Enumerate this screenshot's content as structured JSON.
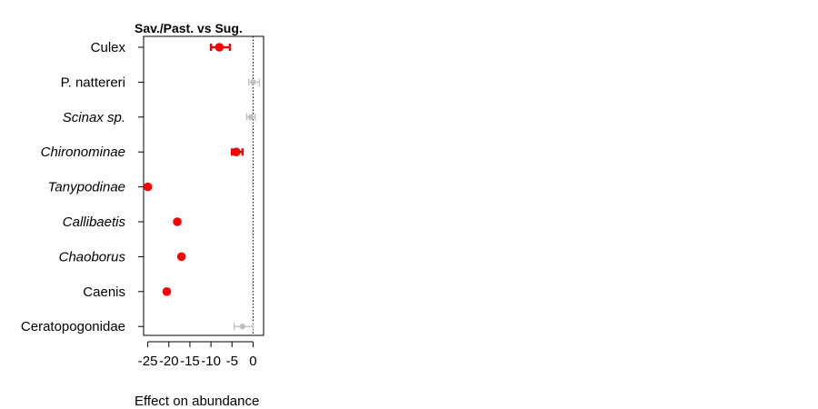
{
  "chart_data": {
    "type": "scatter",
    "title": "Sav./Past. vs Sug.",
    "xlabel": "Effect on abundance",
    "ylabel": "",
    "xlim": [
      -26,
      2.5
    ],
    "xticks": [
      -25,
      -20,
      -15,
      -10,
      -5,
      0
    ],
    "tick_labels": [
      "-25",
      "-20",
      "-15",
      "-10",
      "-5",
      "0"
    ],
    "reference_line": 0,
    "colors": {
      "significant": "#ff0000",
      "not_significant": "#c0c0c0"
    },
    "points": [
      {
        "label": "Culex",
        "italic": false,
        "estimate": -8,
        "lower": -10,
        "upper": -5.5,
        "significant": true
      },
      {
        "label": "P. nattereri",
        "italic": false,
        "estimate": 0,
        "lower": -1,
        "upper": 1.5,
        "significant": false
      },
      {
        "label": "Scinax sp.",
        "italic": true,
        "estimate": -0.5,
        "lower": -1.5,
        "upper": 0.5,
        "significant": false
      },
      {
        "label": "Chironominae",
        "italic": true,
        "estimate": -4,
        "lower": -5,
        "upper": -2.5,
        "significant": true
      },
      {
        "label": "Tanypodinae",
        "italic": true,
        "estimate": -25,
        "lower": -25,
        "upper": -25,
        "significant": true
      },
      {
        "label": "Callibaetis",
        "italic": true,
        "estimate": -18,
        "lower": -18,
        "upper": -18,
        "significant": true
      },
      {
        "label": "Chaoborus",
        "italic": true,
        "estimate": -17,
        "lower": -17,
        "upper": -17,
        "significant": true
      },
      {
        "label": "Caenis",
        "italic": false,
        "estimate": -20.5,
        "lower": -20.5,
        "upper": -20.5,
        "significant": true
      },
      {
        "label": "Ceratopogonidae",
        "italic": false,
        "estimate": -2.5,
        "lower": -4.5,
        "upper": 0,
        "significant": false
      }
    ]
  }
}
